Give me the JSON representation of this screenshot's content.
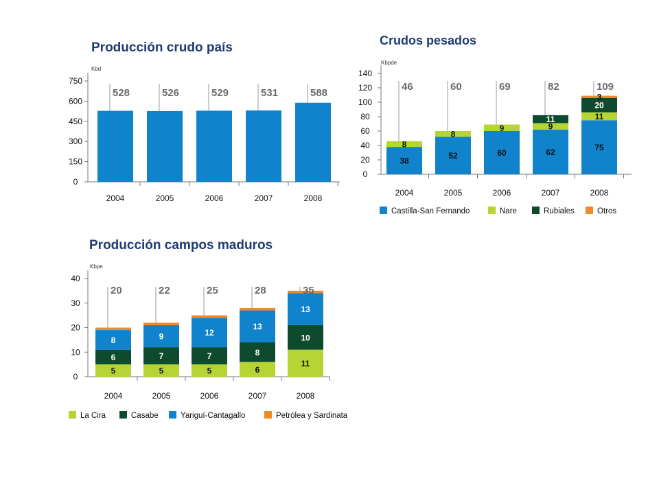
{
  "colors": {
    "title": "#1f3b73",
    "axis": "#777777",
    "leader": "#9a9a9a",
    "total": "#6b6b6b",
    "blue": "#1183cc",
    "lime": "#b6d433",
    "darkgreen": "#0e4a2e",
    "orange": "#ee8a2a"
  },
  "chart_data": [
    {
      "id": "produccion-crudo-pais",
      "type": "bar",
      "title": "Producción crudo país",
      "ylabel": "Kbd",
      "ylim": [
        0,
        750
      ],
      "yticks": [
        "0",
        "150",
        "300",
        "450",
        "600",
        "750"
      ],
      "categories": [
        "2004",
        "2005",
        "2006",
        "2007",
        "2008"
      ],
      "series": [
        {
          "color": "#1183cc",
          "values": [
            528,
            526,
            529,
            531,
            588
          ]
        }
      ],
      "totals": [
        "528",
        "526",
        "529",
        "531",
        "588"
      ],
      "legend": []
    },
    {
      "id": "crudos-pesados",
      "type": "bar",
      "stacked": true,
      "title": "Crudos pesados",
      "ylabel": "Kbpde",
      "ylim": [
        0,
        140
      ],
      "yticks": [
        "0",
        "20",
        "40",
        "60",
        "80",
        "100",
        "120",
        "140"
      ],
      "categories": [
        "2004",
        "2005",
        "2006",
        "2007",
        "2008"
      ],
      "series": [
        {
          "name": "Castilla-San Fernando",
          "color": "#1183cc",
          "label_color": "#111111",
          "values": [
            38,
            52,
            60,
            62,
            75
          ],
          "labels": [
            "38",
            "52",
            "60",
            "62",
            "75"
          ]
        },
        {
          "name": "Nare",
          "color": "#b6d433",
          "label_color": "#111111",
          "values": [
            8,
            8,
            9,
            9,
            11
          ],
          "labels": [
            "8",
            "8",
            "9",
            "9",
            "11"
          ]
        },
        {
          "name": "Rubiales",
          "color": "#0e4a2e",
          "label_color": "#ffffff",
          "values": [
            0,
            0,
            0,
            11,
            20
          ],
          "labels": [
            "",
            "",
            "",
            "11",
            "20"
          ]
        },
        {
          "name": "Otros",
          "color": "#ee8a2a",
          "label_color": "#111111",
          "values": [
            0,
            0,
            0,
            0,
            3
          ],
          "labels": [
            "",
            "",
            "",
            "",
            "3"
          ]
        }
      ],
      "totals": [
        "46",
        "60",
        "69",
        "82",
        "109"
      ]
    },
    {
      "id": "produccion-campos-maduros",
      "type": "bar",
      "stacked": true,
      "title": "Producción campos maduros",
      "ylabel": "Kbpe",
      "ylim": [
        0,
        40
      ],
      "yticks": [
        "0",
        "10",
        "20",
        "30",
        "40"
      ],
      "categories": [
        "2004",
        "2005",
        "2006",
        "2007",
        "2008"
      ],
      "series": [
        {
          "name": "La Cira",
          "color": "#b6d433",
          "label_color": "#111111",
          "values": [
            5,
            5,
            5,
            6,
            11
          ],
          "labels": [
            "5",
            "5",
            "5",
            "6",
            "11"
          ]
        },
        {
          "name": "Casabe",
          "color": "#0e4a2e",
          "label_color": "#ffffff",
          "values": [
            6,
            7,
            7,
            8,
            10
          ],
          "labels": [
            "6",
            "7",
            "7",
            "8",
            "10"
          ]
        },
        {
          "name": "Yariguí-Cantagallo",
          "color": "#1183cc",
          "label_color": "#ffffff",
          "values": [
            8,
            9,
            12,
            13,
            13
          ],
          "labels": [
            "8",
            "9",
            "12",
            "13",
            "13"
          ]
        },
        {
          "name": "Petrólea y Sardinata",
          "color": "#ee8a2a",
          "label_color": "#111111",
          "values": [
            1,
            1,
            1,
            1,
            1
          ],
          "labels": [
            "",
            "",
            "",
            "",
            ""
          ]
        }
      ],
      "totals": [
        "20",
        "22",
        "25",
        "28",
        "35"
      ]
    }
  ]
}
